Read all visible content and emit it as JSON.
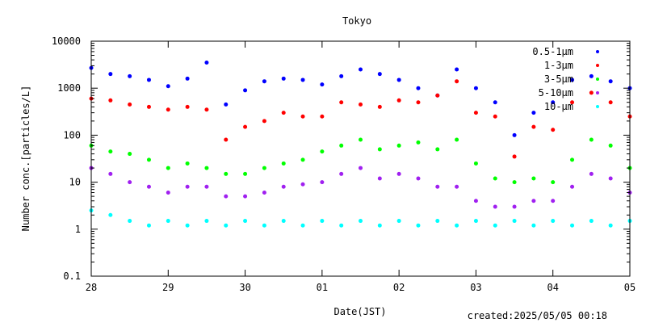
{
  "footer": {
    "created": "created:2025/05/05 00:18"
  },
  "chart_data": {
    "type": "scatter",
    "title": "Tokyo",
    "xlabel": "Date(JST)",
    "ylabel": "Number conc.[particles/L]",
    "y_scale": "log",
    "ylim": [
      0.1,
      10000
    ],
    "y_ticks": [
      0.1,
      1,
      10,
      100,
      1000,
      10000
    ],
    "y_tick_labels": [
      "0.1",
      "1",
      "10",
      "100",
      "1000",
      "10000"
    ],
    "x_ticks": [
      "2025-04-28",
      "2025-04-29",
      "2025-04-30",
      "2025-05-01",
      "2025-05-02",
      "2025-05-03",
      "2025-05-04",
      "2025-05-05"
    ],
    "x_tick_labels": [
      "28",
      "29",
      "30",
      "01",
      "02",
      "03",
      "04",
      "05"
    ],
    "xlim": [
      "2025-04-28 00:00",
      "2025-05-05 00:00"
    ],
    "legend_position": "top-right",
    "grid": false,
    "x": [
      "2025-04-28 00:00",
      "2025-04-28 06:00",
      "2025-04-28 12:00",
      "2025-04-28 18:00",
      "2025-04-29 00:00",
      "2025-04-29 06:00",
      "2025-04-29 12:00",
      "2025-04-29 18:00",
      "2025-04-30 00:00",
      "2025-04-30 06:00",
      "2025-04-30 12:00",
      "2025-04-30 18:00",
      "2025-05-01 00:00",
      "2025-05-01 06:00",
      "2025-05-01 12:00",
      "2025-05-01 18:00",
      "2025-05-02 00:00",
      "2025-05-02 06:00",
      "2025-05-02 12:00",
      "2025-05-02 18:00",
      "2025-05-03 00:00",
      "2025-05-03 06:00",
      "2025-05-03 12:00",
      "2025-05-03 18:00",
      "2025-05-04 00:00",
      "2025-05-04 06:00",
      "2025-05-04 12:00",
      "2025-05-04 18:00",
      "2025-05-05 00:00"
    ],
    "series": [
      {
        "name": "0.5-1μm",
        "color": "#0000ff",
        "values": [
          2700,
          2000,
          1800,
          1500,
          1100,
          1600,
          3500,
          450,
          900,
          1400,
          1600,
          1500,
          1200,
          1800,
          2500,
          2000,
          1500,
          1000,
          700,
          2500,
          1000,
          500,
          100,
          300,
          500,
          1500,
          1800,
          1400,
          1000
        ]
      },
      {
        "name": "1-3μm",
        "color": "#ff0000",
        "values": [
          600,
          550,
          450,
          400,
          350,
          400,
          350,
          80,
          150,
          200,
          300,
          250,
          250,
          500,
          450,
          400,
          550,
          500,
          700,
          1400,
          300,
          250,
          35,
          150,
          130,
          500,
          800,
          500,
          250
        ]
      },
      {
        "name": "3-5μm",
        "color": "#00ff00",
        "values": [
          60,
          45,
          40,
          30,
          20,
          25,
          20,
          15,
          15,
          20,
          25,
          30,
          45,
          60,
          80,
          50,
          60,
          70,
          50,
          80,
          25,
          12,
          10,
          12,
          10,
          30,
          80,
          60,
          20
        ]
      },
      {
        "name": "5-10μm",
        "color": "#a020f0",
        "values": [
          20,
          15,
          10,
          8,
          6,
          8,
          8,
          5,
          5,
          6,
          8,
          9,
          10,
          15,
          20,
          12,
          15,
          12,
          8,
          8,
          4,
          3,
          3,
          4,
          4,
          8,
          15,
          12,
          6
        ]
      },
      {
        "name": "10-μm",
        "color": "#00ffff",
        "values": [
          2.5,
          2,
          1.5,
          1.2,
          1.5,
          1.2,
          1.5,
          1.2,
          1.5,
          1.2,
          1.5,
          1.2,
          1.5,
          1.2,
          1.5,
          1.2,
          1.5,
          1.2,
          1.5,
          1.2,
          1.5,
          1.2,
          1.5,
          1.2,
          1.5,
          1.2,
          1.5,
          1.2,
          1.5
        ]
      }
    ]
  }
}
